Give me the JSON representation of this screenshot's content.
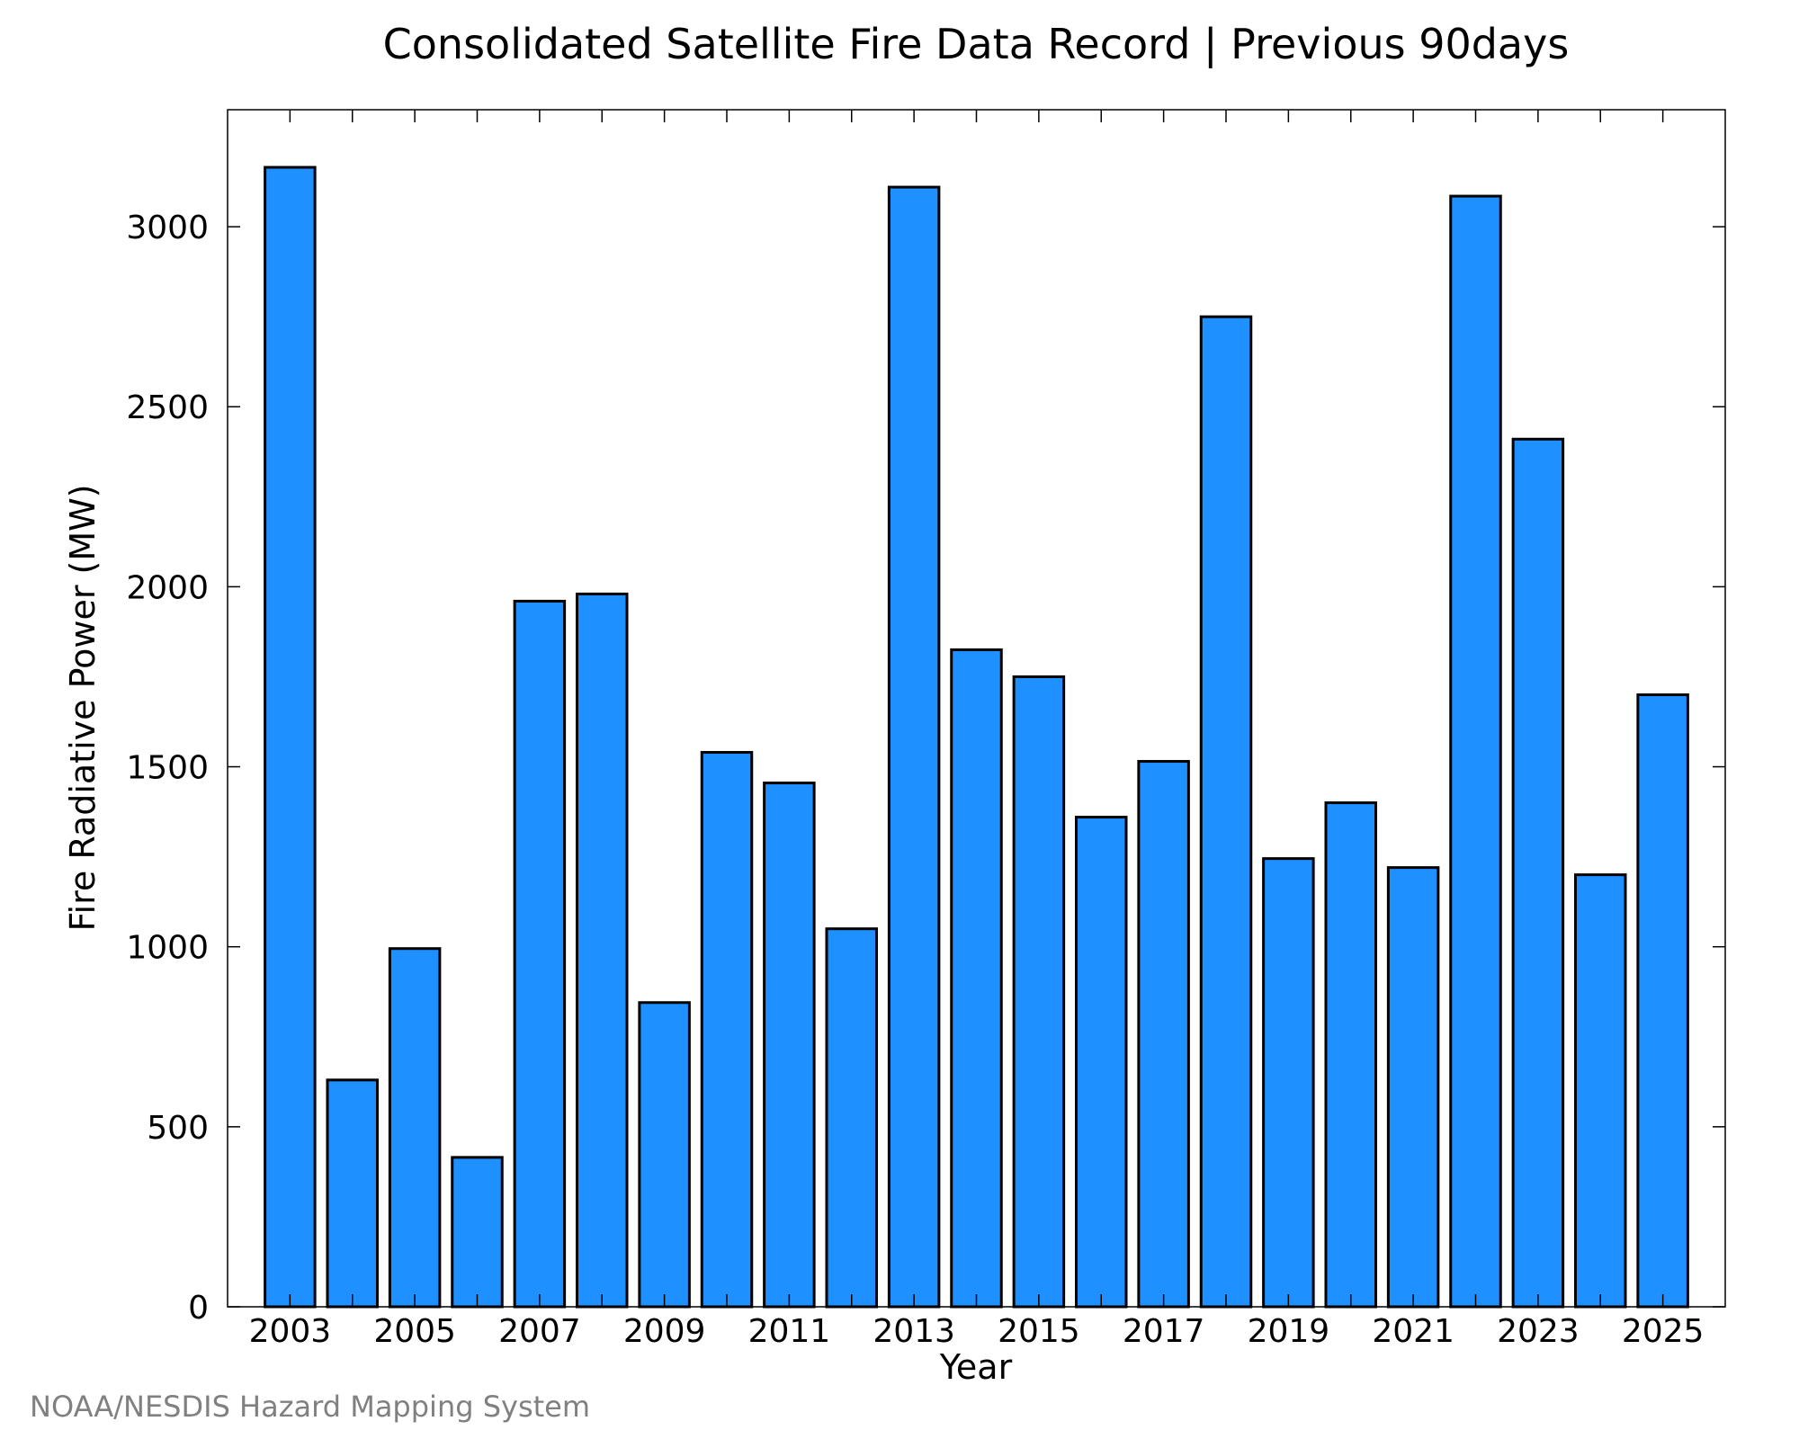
{
  "chart_data": {
    "type": "bar",
    "title": "Consolidated Satellite Fire Data Record | Previous 90days",
    "xlabel": "Year",
    "ylabel": "Fire Radiative Power (MW)",
    "x_tick_labels": [
      "2003",
      "2005",
      "2007",
      "2009",
      "2011",
      "2013",
      "2015",
      "2017",
      "2019",
      "2021",
      "2023",
      "2025"
    ],
    "y_tick_labels": [
      "0",
      "500",
      "1000",
      "1500",
      "2000",
      "2500",
      "3000"
    ],
    "y_ticks": [
      0,
      500,
      1000,
      1500,
      2000,
      2500,
      3000
    ],
    "ylim": [
      0,
      3325
    ],
    "xlim": [
      2002,
      2026
    ],
    "grid": false,
    "bar_color": "#1E90FF",
    "bar_edge_color": "#000000",
    "categories": [
      2003,
      2004,
      2005,
      2006,
      2007,
      2008,
      2009,
      2010,
      2011,
      2012,
      2013,
      2014,
      2015,
      2016,
      2017,
      2018,
      2019,
      2020,
      2021,
      2022,
      2023,
      2024,
      2025
    ],
    "values": [
      3165,
      630,
      995,
      415,
      1960,
      1980,
      845,
      1540,
      1455,
      1050,
      3110,
      1825,
      1750,
      1360,
      1515,
      2750,
      1245,
      1400,
      1220,
      3085,
      2410,
      1200,
      1700
    ]
  },
  "footer": {
    "source": "NOAA/NESDIS Hazard Mapping System"
  }
}
